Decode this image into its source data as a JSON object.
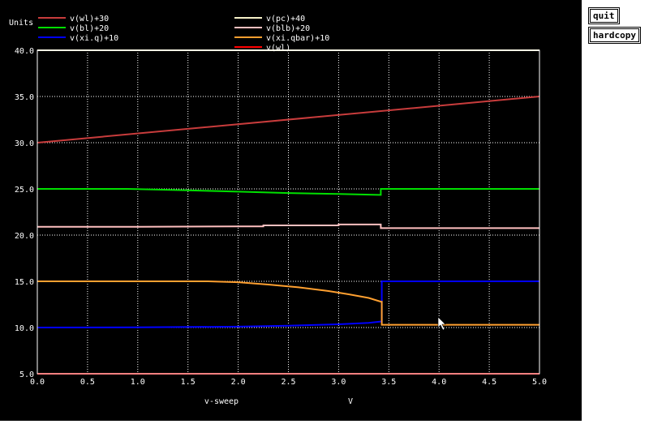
{
  "buttons": {
    "quit": "quit",
    "hardcopy": "hardcopy"
  },
  "chart_data": {
    "type": "line",
    "ylabel": "Units",
    "xlabel": "v-sweep",
    "xunit": "V",
    "xlim": [
      0,
      5
    ],
    "ylim": [
      5,
      40
    ],
    "xticks": [
      "0.0",
      "0.5",
      "1.0",
      "1.5",
      "2.0",
      "2.5",
      "3.0",
      "3.5",
      "4.0",
      "4.5",
      "5.0"
    ],
    "yticks": [
      "5.0",
      "10.0",
      "15.0",
      "20.0",
      "25.0",
      "30.0",
      "35.0",
      "40.0"
    ],
    "grid": true,
    "legend_position": "top",
    "series": [
      {
        "name": "v(wl)+30",
        "color": "#c83c3c",
        "x": [
          0,
          5
        ],
        "y": [
          30,
          35
        ]
      },
      {
        "name": "v(pc)+40",
        "color": "#f5f0c8",
        "x": [
          0,
          5
        ],
        "y": [
          40,
          40
        ]
      },
      {
        "name": "v(bl)+20",
        "color": "#00e000",
        "x": [
          0,
          0.9,
          1.5,
          2.0,
          2.5,
          3.0,
          3.4,
          3.42,
          3.42,
          5.0
        ],
        "y": [
          25,
          25,
          24.85,
          24.7,
          24.55,
          24.45,
          24.35,
          24.35,
          25,
          25
        ]
      },
      {
        "name": "v(blb)+20",
        "color": "#ffc0c0",
        "x": [
          0,
          1.0,
          2.0,
          2.25,
          2.25,
          3.0,
          3.0,
          3.42,
          3.42,
          5.0
        ],
        "y": [
          20.9,
          20.9,
          20.95,
          20.95,
          21.05,
          21.05,
          21.15,
          21.15,
          20.75,
          20.75
        ]
      },
      {
        "name": "v(xi.q)+10",
        "color": "#0000ff",
        "x": [
          0,
          1.0,
          2.0,
          2.5,
          3.0,
          3.3,
          3.42,
          3.43,
          3.43,
          5.0
        ],
        "y": [
          10,
          10.02,
          10.1,
          10.2,
          10.35,
          10.5,
          10.65,
          10.65,
          15,
          15
        ]
      },
      {
        "name": "v(xi.qbar)+10",
        "color": "#ffa030",
        "x": [
          0,
          1.0,
          1.7,
          2.0,
          2.3,
          2.6,
          2.9,
          3.1,
          3.3,
          3.42,
          3.43,
          3.43,
          5.0
        ],
        "y": [
          15,
          15,
          15,
          14.9,
          14.65,
          14.35,
          13.95,
          13.6,
          13.2,
          12.8,
          12.8,
          10.3,
          10.3
        ]
      },
      {
        "name": "v(wl)",
        "color": "#ff0000",
        "x": [
          0,
          5
        ],
        "y": [
          5,
          5
        ]
      }
    ]
  }
}
